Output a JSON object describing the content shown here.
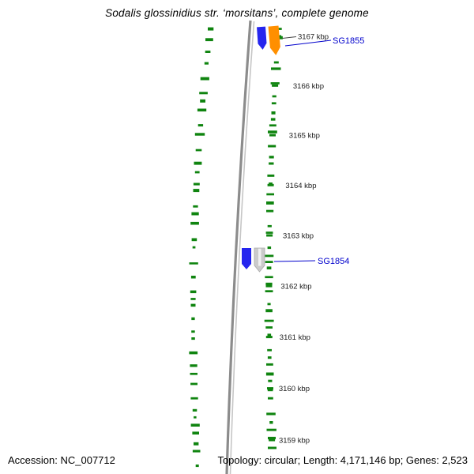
{
  "title": "Sodalis glossinidius str. ‘morsitans’, complete genome",
  "footer": {
    "accession": "Accession: NC_007712",
    "topology": "Topology: circular; Length: 4,171,146 bp; Genes: 2,523"
  },
  "scale": {
    "unit": "kbp",
    "tick_labels": [
      "3167 kbp",
      "3166 kbp",
      "3165 kbp",
      "3164 kbp",
      "3163 kbp",
      "3162 kbp",
      "3161 kbp",
      "3160 kbp",
      "3159 kbp"
    ]
  },
  "features": [
    {
      "label": "SG1855",
      "block_colors": [
        "#2525ee",
        "#ff8f00"
      ]
    },
    {
      "label": "SG1854",
      "block_colors": [
        "#2525ee",
        "#cbcbcb"
      ]
    }
  ],
  "colors": {
    "backbone": "#8c8c8c",
    "backbone_highlight": "#c6c6c6",
    "gene_dash": "#0f840f",
    "feature_label": "#0000cc",
    "tick_label": "#1a1a1a",
    "pointer_line": "#444444"
  }
}
